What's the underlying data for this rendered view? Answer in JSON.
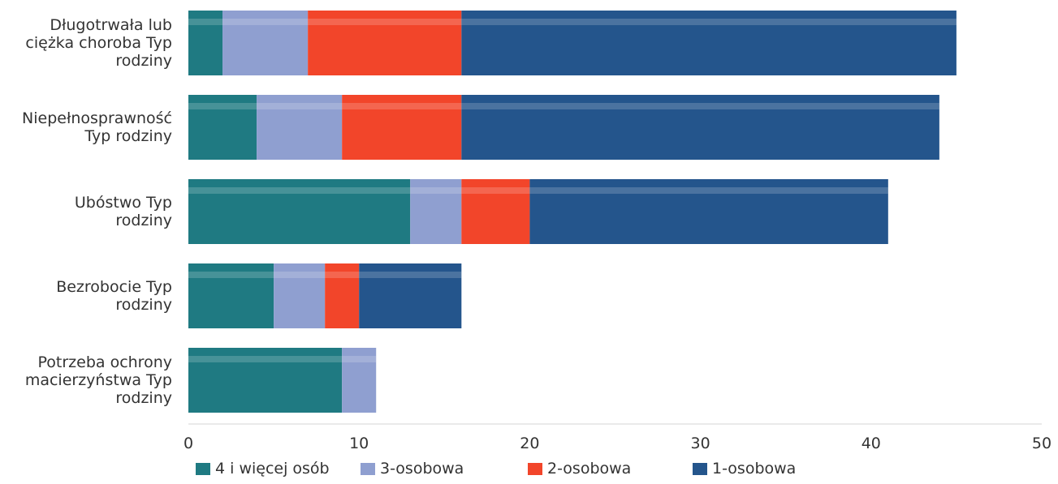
{
  "chart_data": {
    "type": "bar",
    "orientation": "horizontal",
    "stacked": true,
    "categories": [
      [
        "Długotrwała lub",
        "ciężka choroba Typ",
        "rodziny"
      ],
      [
        "Niepełnosprawność",
        "Typ rodziny"
      ],
      [
        "Ubóstwo Typ",
        "rodziny"
      ],
      [
        "Bezrobocie Typ",
        "rodziny"
      ],
      [
        "Potrzeba ochrony",
        "macierzyństwa Typ",
        "rodziny"
      ]
    ],
    "series": [
      {
        "name": "4  i więcej osób",
        "color": "#1f7a82",
        "values": [
          2,
          4,
          13,
          5,
          9
        ]
      },
      {
        "name": "3-osobowa",
        "color": "#8f9fd0",
        "values": [
          5,
          5,
          3,
          3,
          2
        ]
      },
      {
        "name": "2-osobowa",
        "color": "#f2452a",
        "values": [
          9,
          7,
          4,
          2,
          0
        ]
      },
      {
        "name": "1-osobowa",
        "color": "#24558c",
        "values": [
          29,
          28,
          21,
          6,
          0
        ]
      }
    ],
    "xlim": [
      0,
      50
    ],
    "xticks": [
      0,
      10,
      20,
      30,
      40,
      50
    ],
    "grid": false,
    "legend_position": "bottom"
  }
}
